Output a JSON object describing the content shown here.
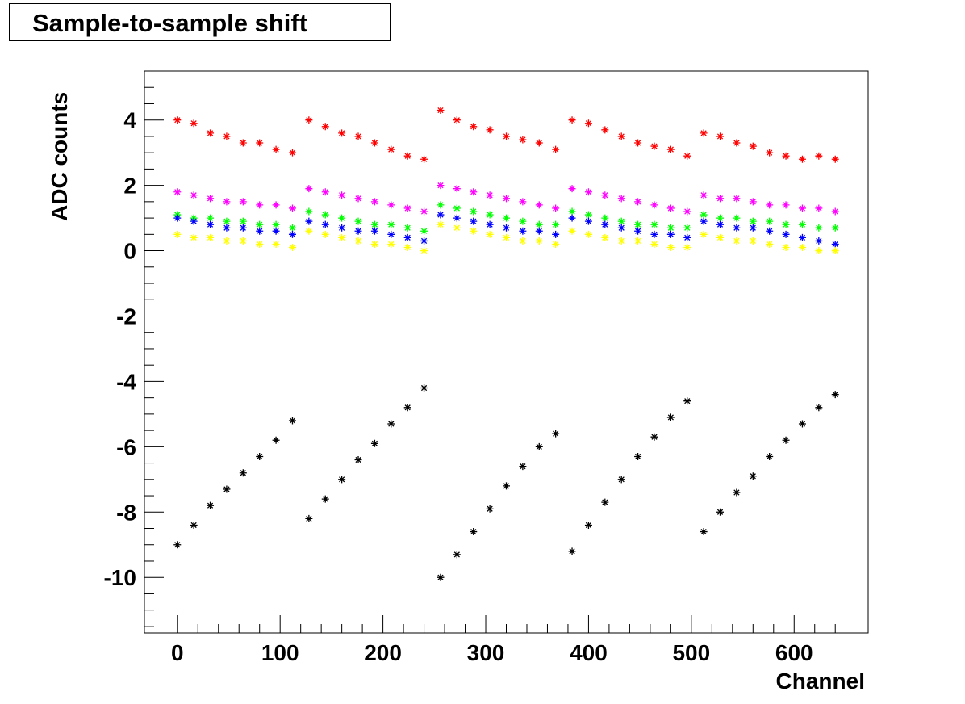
{
  "chart_data": {
    "type": "scatter",
    "title": "Sample-to-sample shift",
    "xlabel": "Channel",
    "ylabel": "ADC counts",
    "xlim": [
      -32,
      672
    ],
    "ylim": [
      -11.7,
      5.5
    ],
    "xticks": [
      0,
      100,
      200,
      300,
      400,
      500,
      600
    ],
    "xtick_labels": [
      "0",
      "100",
      "200",
      "300",
      "400",
      "500",
      "600"
    ],
    "yticks": [
      -10,
      -8,
      -6,
      -4,
      -2,
      0,
      2,
      4
    ],
    "ytick_labels": [
      "-10",
      "-8",
      "-6",
      "-4",
      "-2",
      "0",
      "2",
      "4"
    ],
    "grid": false,
    "legend": "none",
    "marker": "asterisk",
    "series": [
      {
        "color": "#ff0000",
        "x": [
          0,
          16,
          32,
          48,
          64,
          80,
          96,
          112,
          128,
          144,
          160,
          176,
          192,
          208,
          224,
          240,
          256,
          272,
          288,
          304,
          320,
          336,
          352,
          368,
          384,
          400,
          416,
          432,
          448,
          464,
          480,
          496,
          512,
          528,
          544,
          560,
          576,
          592,
          608,
          624,
          640
        ],
        "y": [
          4.0,
          3.9,
          3.6,
          3.5,
          3.3,
          3.3,
          3.1,
          3.0,
          4.0,
          3.8,
          3.6,
          3.5,
          3.3,
          3.1,
          2.9,
          2.8,
          4.3,
          4.0,
          3.8,
          3.7,
          3.5,
          3.4,
          3.3,
          3.1,
          4.0,
          3.9,
          3.7,
          3.5,
          3.3,
          3.2,
          3.1,
          2.9,
          3.6,
          3.5,
          3.3,
          3.2,
          3.0,
          2.9,
          2.8,
          2.9,
          2.8
        ]
      },
      {
        "color": "#ff00ff",
        "x": [
          0,
          16,
          32,
          48,
          64,
          80,
          96,
          112,
          128,
          144,
          160,
          176,
          192,
          208,
          224,
          240,
          256,
          272,
          288,
          304,
          320,
          336,
          352,
          368,
          384,
          400,
          416,
          432,
          448,
          464,
          480,
          496,
          512,
          528,
          544,
          560,
          576,
          592,
          608,
          624,
          640
        ],
        "y": [
          1.8,
          1.7,
          1.6,
          1.5,
          1.5,
          1.4,
          1.4,
          1.3,
          1.9,
          1.8,
          1.7,
          1.6,
          1.5,
          1.4,
          1.3,
          1.2,
          2.0,
          1.9,
          1.8,
          1.7,
          1.6,
          1.5,
          1.4,
          1.3,
          1.9,
          1.8,
          1.7,
          1.6,
          1.5,
          1.4,
          1.3,
          1.2,
          1.7,
          1.6,
          1.6,
          1.5,
          1.4,
          1.4,
          1.3,
          1.3,
          1.2
        ]
      },
      {
        "color": "#00ff00",
        "x": [
          0,
          16,
          32,
          48,
          64,
          80,
          96,
          112,
          128,
          144,
          160,
          176,
          192,
          208,
          224,
          240,
          256,
          272,
          288,
          304,
          320,
          336,
          352,
          368,
          384,
          400,
          416,
          432,
          448,
          464,
          480,
          496,
          512,
          528,
          544,
          560,
          576,
          592,
          608,
          624,
          640
        ],
        "y": [
          1.1,
          1.0,
          1.0,
          0.9,
          0.9,
          0.8,
          0.8,
          0.7,
          1.2,
          1.1,
          1.0,
          0.9,
          0.8,
          0.8,
          0.7,
          0.6,
          1.4,
          1.3,
          1.2,
          1.1,
          1.0,
          0.9,
          0.8,
          0.8,
          1.2,
          1.1,
          1.0,
          0.9,
          0.8,
          0.8,
          0.7,
          0.7,
          1.1,
          1.0,
          1.0,
          0.9,
          0.9,
          0.8,
          0.8,
          0.7,
          0.7
        ]
      },
      {
        "color": "#0000ff",
        "x": [
          0,
          16,
          32,
          48,
          64,
          80,
          96,
          112,
          128,
          144,
          160,
          176,
          192,
          208,
          224,
          240,
          256,
          272,
          288,
          304,
          320,
          336,
          352,
          368,
          384,
          400,
          416,
          432,
          448,
          464,
          480,
          496,
          512,
          528,
          544,
          560,
          576,
          592,
          608,
          624,
          640
        ],
        "y": [
          1.0,
          0.9,
          0.8,
          0.7,
          0.7,
          0.6,
          0.6,
          0.5,
          0.9,
          0.8,
          0.7,
          0.6,
          0.6,
          0.5,
          0.4,
          0.3,
          1.1,
          1.0,
          0.9,
          0.8,
          0.7,
          0.6,
          0.6,
          0.5,
          1.0,
          0.9,
          0.8,
          0.7,
          0.6,
          0.5,
          0.5,
          0.4,
          0.9,
          0.8,
          0.7,
          0.7,
          0.6,
          0.5,
          0.4,
          0.3,
          0.2
        ]
      },
      {
        "color": "#ffff00",
        "x": [
          0,
          16,
          32,
          48,
          64,
          80,
          96,
          112,
          128,
          144,
          160,
          176,
          192,
          208,
          224,
          240,
          256,
          272,
          288,
          304,
          320,
          336,
          352,
          368,
          384,
          400,
          416,
          432,
          448,
          464,
          480,
          496,
          512,
          528,
          544,
          560,
          576,
          592,
          608,
          624,
          640
        ],
        "y": [
          0.5,
          0.4,
          0.4,
          0.3,
          0.3,
          0.2,
          0.2,
          0.1,
          0.6,
          0.5,
          0.4,
          0.3,
          0.2,
          0.2,
          0.1,
          0.0,
          0.8,
          0.7,
          0.6,
          0.5,
          0.4,
          0.3,
          0.3,
          0.2,
          0.6,
          0.5,
          0.4,
          0.3,
          0.3,
          0.2,
          0.1,
          0.1,
          0.5,
          0.4,
          0.3,
          0.3,
          0.2,
          0.1,
          0.1,
          0.0,
          0.0
        ]
      },
      {
        "color": "#000000",
        "x": [
          0,
          16,
          32,
          48,
          64,
          80,
          96,
          112,
          128,
          144,
          160,
          176,
          192,
          208,
          224,
          240,
          256,
          272,
          288,
          304,
          320,
          336,
          352,
          368,
          384,
          400,
          416,
          432,
          448,
          464,
          480,
          496,
          512,
          528,
          544,
          560,
          576,
          592,
          608,
          624,
          640
        ],
        "y": [
          -9.0,
          -8.4,
          -7.8,
          -7.3,
          -6.8,
          -6.3,
          -5.8,
          -5.2,
          -8.2,
          -7.6,
          -7.0,
          -6.4,
          -5.9,
          -5.3,
          -4.8,
          -4.2,
          -10.0,
          -9.3,
          -8.6,
          -7.9,
          -7.2,
          -6.6,
          -6.0,
          -5.6,
          -9.2,
          -8.4,
          -7.7,
          -7.0,
          -6.3,
          -5.7,
          -5.1,
          -4.6,
          -8.6,
          -8.0,
          -7.4,
          -6.9,
          -6.3,
          -5.8,
          -5.3,
          -4.8,
          -4.4
        ]
      }
    ]
  }
}
